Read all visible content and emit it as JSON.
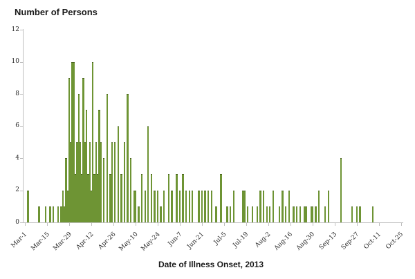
{
  "accent_colors": {
    "bar_fill": "#6e9434",
    "bar_edge": "#4c661f",
    "axis": "#bfbfbf",
    "text": "#1a1a1a"
  },
  "chart_data": {
    "type": "bar",
    "title": "Number of Persons",
    "xlabel": "Date of Illness Onset, 2013",
    "ylabel": "",
    "ylim": [
      0,
      12
    ],
    "yticks": [
      0,
      2,
      4,
      6,
      8,
      10,
      12
    ],
    "grid": "off",
    "legend": "none",
    "x_unit": "day (offset from Mar 1, 2013)",
    "x_range_days": [
      0,
      238
    ],
    "x_tick_labels": [
      {
        "label": "Mar-1",
        "day": 0
      },
      {
        "label": "Mar-15",
        "day": 14
      },
      {
        "label": "Mar-29",
        "day": 28
      },
      {
        "label": "Apr-12",
        "day": 42
      },
      {
        "label": "Apr-26",
        "day": 56
      },
      {
        "label": "May-10",
        "day": 70
      },
      {
        "label": "May-24",
        "day": 84
      },
      {
        "label": "Jun-7",
        "day": 98
      },
      {
        "label": "Jun-21",
        "day": 112
      },
      {
        "label": "Jul-5",
        "day": 126
      },
      {
        "label": "Jul-19",
        "day": 140
      },
      {
        "label": "Aug-2",
        "day": 154
      },
      {
        "label": "Aug-16",
        "day": 168
      },
      {
        "label": "Aug-30",
        "day": 182
      },
      {
        "label": "Sep-13",
        "day": 196
      },
      {
        "label": "Sep-27",
        "day": 210
      },
      {
        "label": "Oct-11",
        "day": 224
      },
      {
        "label": "Oct-25",
        "day": 238
      }
    ],
    "series": [
      {
        "name": "Number of Persons",
        "points": [
          [
            2,
            2,
            "Mar-3"
          ],
          [
            9,
            1,
            "Mar-10"
          ],
          [
            13,
            1,
            "Mar-14"
          ],
          [
            16,
            1,
            "Mar-17"
          ],
          [
            18,
            1,
            "Mar-19"
          ],
          [
            21,
            1,
            "Mar-22"
          ],
          [
            23,
            1,
            "Mar-24"
          ],
          [
            24,
            2,
            "Mar-25"
          ],
          [
            25,
            1,
            "Mar-26"
          ],
          [
            26,
            4,
            "Mar-27"
          ],
          [
            27,
            2,
            "Mar-28"
          ],
          [
            28,
            9,
            "Mar-29"
          ],
          [
            29,
            5,
            "Mar-30"
          ],
          [
            30,
            10,
            "Mar-31"
          ],
          [
            31,
            10,
            "Apr-1"
          ],
          [
            32,
            3,
            "Apr-2"
          ],
          [
            33,
            5,
            "Apr-3"
          ],
          [
            34,
            8,
            "Apr-4"
          ],
          [
            35,
            5,
            "Apr-5"
          ],
          [
            36,
            3,
            "Apr-6"
          ],
          [
            37,
            9,
            "Apr-7"
          ],
          [
            38,
            5,
            "Apr-8"
          ],
          [
            39,
            7,
            "Apr-9"
          ],
          [
            40,
            3,
            "Apr-10"
          ],
          [
            41,
            5,
            "Apr-11"
          ],
          [
            42,
            2,
            "Apr-12"
          ],
          [
            43,
            10,
            "Apr-13"
          ],
          [
            44,
            3,
            "Apr-14"
          ],
          [
            45,
            5,
            "Apr-15"
          ],
          [
            46,
            3,
            "Apr-16"
          ],
          [
            47,
            7,
            "Apr-17"
          ],
          [
            48,
            5,
            "Apr-18"
          ],
          [
            50,
            4,
            "Apr-20"
          ],
          [
            52,
            8,
            "Apr-22"
          ],
          [
            54,
            3,
            "Apr-24"
          ],
          [
            55,
            5,
            "Apr-25"
          ],
          [
            57,
            5,
            "Apr-27"
          ],
          [
            59,
            6,
            "Apr-29"
          ],
          [
            61,
            3,
            "May-1"
          ],
          [
            63,
            5,
            "May-3"
          ],
          [
            65,
            8,
            "May-5"
          ],
          [
            67,
            4,
            "May-7"
          ],
          [
            69,
            2,
            "May-9"
          ],
          [
            70,
            2,
            "May-10"
          ],
          [
            72,
            1,
            "May-12"
          ],
          [
            74,
            3,
            "May-14"
          ],
          [
            76,
            2,
            "May-16"
          ],
          [
            78,
            6,
            "May-18"
          ],
          [
            80,
            3,
            "May-20"
          ],
          [
            82,
            2,
            "May-22"
          ],
          [
            84,
            2,
            "May-24"
          ],
          [
            86,
            1,
            "May-26"
          ],
          [
            88,
            2,
            "May-28"
          ],
          [
            91,
            3,
            "May-31"
          ],
          [
            93,
            2,
            "Jun-2"
          ],
          [
            96,
            3,
            "Jun-5"
          ],
          [
            98,
            2,
            "Jun-7"
          ],
          [
            100,
            3,
            "Jun-9"
          ],
          [
            102,
            2,
            "Jun-11"
          ],
          [
            104,
            2,
            "Jun-13"
          ],
          [
            106,
            2,
            "Jun-15"
          ],
          [
            110,
            2,
            "Jun-19"
          ],
          [
            112,
            2,
            "Jun-21"
          ],
          [
            114,
            2,
            "Jun-23"
          ],
          [
            116,
            2,
            "Jun-25"
          ],
          [
            118,
            2,
            "Jun-27"
          ],
          [
            121,
            1,
            "Jun-30"
          ],
          [
            124,
            3,
            "Jul-3"
          ],
          [
            128,
            1,
            "Jul-7"
          ],
          [
            130,
            1,
            "Jul-9"
          ],
          [
            132,
            2,
            "Jul-11"
          ],
          [
            138,
            2,
            "Jul-17"
          ],
          [
            139,
            2,
            "Jul-18"
          ],
          [
            141,
            1,
            "Jul-20"
          ],
          [
            144,
            1,
            "Jul-23"
          ],
          [
            147,
            1,
            "Jul-26"
          ],
          [
            149,
            2,
            "Jul-28"
          ],
          [
            151,
            2,
            "Jul-30"
          ],
          [
            153,
            1,
            "Aug-1"
          ],
          [
            155,
            1,
            "Aug-3"
          ],
          [
            157,
            2,
            "Aug-5"
          ],
          [
            161,
            1,
            "Aug-9"
          ],
          [
            163,
            2,
            "Aug-11"
          ],
          [
            165,
            1,
            "Aug-13"
          ],
          [
            167,
            2,
            "Aug-15"
          ],
          [
            170,
            1,
            "Aug-18"
          ],
          [
            172,
            1,
            "Aug-20"
          ],
          [
            174,
            1,
            "Aug-22"
          ],
          [
            177,
            1,
            "Aug-25"
          ],
          [
            178,
            1,
            "Aug-26"
          ],
          [
            181,
            1,
            "Aug-29"
          ],
          [
            182,
            1,
            "Aug-30"
          ],
          [
            184,
            1,
            "Sep-1"
          ],
          [
            186,
            2,
            "Sep-3"
          ],
          [
            190,
            1,
            "Sep-7"
          ],
          [
            192,
            2,
            "Sep-9"
          ],
          [
            200,
            4,
            "Sep-17"
          ],
          [
            207,
            1,
            "Sep-24"
          ],
          [
            210,
            1,
            "Sep-27"
          ],
          [
            212,
            1,
            "Sep-29"
          ],
          [
            220,
            1,
            "Oct-7"
          ]
        ]
      }
    ]
  }
}
